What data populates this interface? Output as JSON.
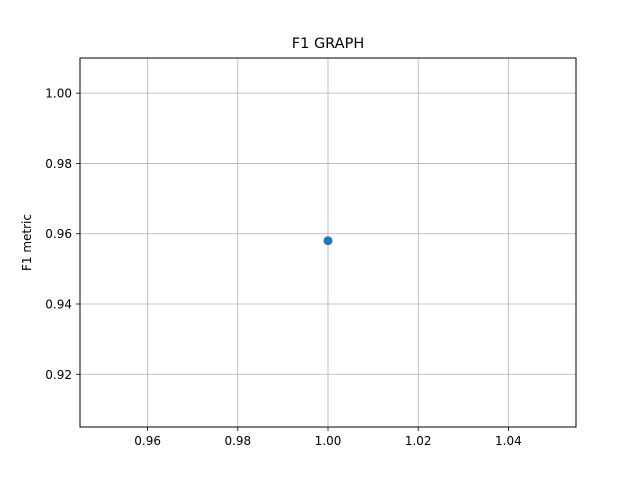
{
  "chart_data": {
    "type": "scatter",
    "title": "F1 GRAPH",
    "xlabel": "",
    "ylabel": "F1 metric",
    "xlim": [
      0.945,
      1.055
    ],
    "ylim": [
      0.905,
      1.01
    ],
    "xticks": [
      0.96,
      0.98,
      1.0,
      1.02,
      1.04
    ],
    "xtick_labels": [
      "0.96",
      "0.98",
      "1.00",
      "1.02",
      "1.04"
    ],
    "yticks": [
      0.92,
      0.94,
      0.96,
      0.98,
      1.0
    ],
    "ytick_labels": [
      "0.92",
      "0.94",
      "0.96",
      "0.98",
      "1.00"
    ],
    "grid": true,
    "series": [
      {
        "color": "#1f77b4",
        "marker": "circle",
        "points": [
          {
            "x": 1.0,
            "y": 0.958
          }
        ]
      }
    ]
  }
}
